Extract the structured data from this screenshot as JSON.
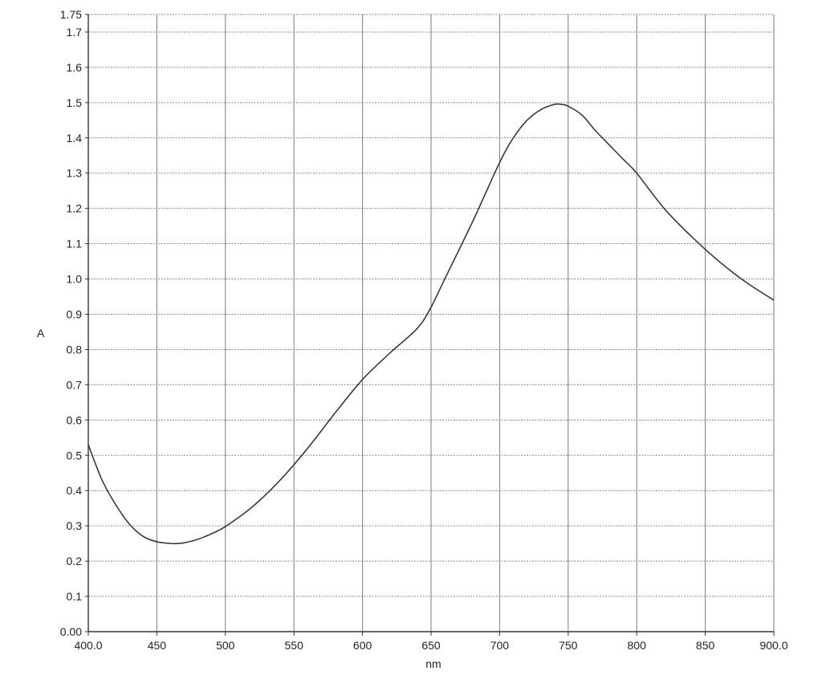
{
  "chart_data": {
    "type": "line",
    "title": "",
    "xlabel": "nm",
    "ylabel": "A",
    "xlim": [
      400,
      900
    ],
    "ylim": [
      0,
      1.75
    ],
    "grid": true,
    "x_ticks": [
      400,
      450,
      500,
      550,
      600,
      650,
      700,
      750,
      800,
      850,
      900
    ],
    "x_tick_labels": [
      "400.0",
      "450",
      "500",
      "550",
      "600",
      "650",
      "700",
      "750",
      "800",
      "850",
      "900.0"
    ],
    "y_ticks": [
      0,
      0.1,
      0.2,
      0.3,
      0.4,
      0.5,
      0.6,
      0.7,
      0.8,
      0.9,
      1.0,
      1.1,
      1.2,
      1.3,
      1.4,
      1.5,
      1.6,
      1.7,
      1.75
    ],
    "y_tick_labels": [
      "0.00",
      "0.1",
      "0.2",
      "0.3",
      "0.4",
      "0.5",
      "0.6",
      "0.7",
      "0.8",
      "0.9",
      "1.0",
      "1.1",
      "1.2",
      "1.3",
      "1.4",
      "1.5",
      "1.6",
      "1.7",
      "1.75"
    ],
    "series": [
      {
        "x": [
          400,
          410,
          420,
          430,
          440,
          450,
          460,
          465,
          470,
          480,
          490,
          500,
          520,
          540,
          560,
          580,
          600,
          620,
          640,
          650,
          660,
          680,
          700,
          710,
          720,
          730,
          740,
          745,
          750,
          760,
          770,
          780,
          790,
          800,
          820,
          840,
          860,
          880,
          900
        ],
        "y": [
          0.53,
          0.43,
          0.36,
          0.305,
          0.27,
          0.255,
          0.25,
          0.25,
          0.252,
          0.262,
          0.278,
          0.298,
          0.355,
          0.43,
          0.52,
          0.62,
          0.715,
          0.79,
          0.86,
          0.92,
          1.0,
          1.16,
          1.33,
          1.4,
          1.45,
          1.48,
          1.495,
          1.495,
          1.49,
          1.465,
          1.42,
          1.38,
          1.34,
          1.3,
          1.2,
          1.12,
          1.05,
          0.99,
          0.94
        ]
      }
    ]
  }
}
